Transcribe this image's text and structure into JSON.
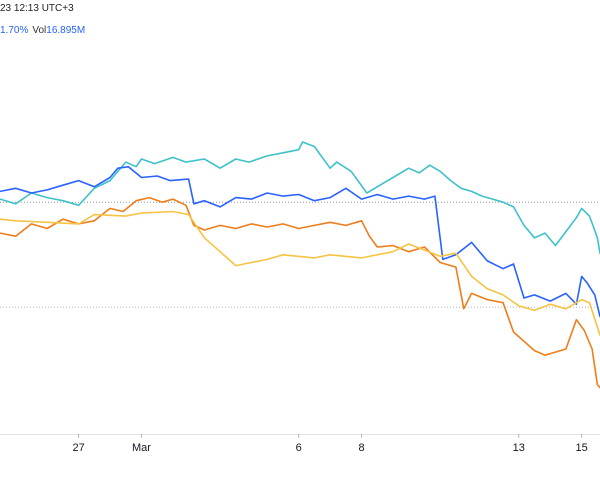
{
  "header": {
    "datetime": "23 12:13 UTC+3",
    "change": "1.70%",
    "volume_label": "Vol",
    "volume_value": "16.895M"
  },
  "chart_data": {
    "type": "line",
    "title": "",
    "xlabel": "",
    "ylabel": "",
    "x_axis": {
      "range": [
        "2023-02-24T12:00",
        "2023-03-15T14:00"
      ],
      "tick_labels": [
        {
          "label": "27",
          "x": "2023-02-27"
        },
        {
          "label": "Mar",
          "x": "2023-03-01"
        },
        {
          "label": "6",
          "x": "2023-03-06"
        },
        {
          "label": "8",
          "x": "2023-03-08"
        },
        {
          "label": "13",
          "x": "2023-03-13"
        },
        {
          "label": "15",
          "x": "2023-03-15"
        }
      ]
    },
    "y_axis": {
      "unit": "% change",
      "range": [
        -15,
        10.5
      ],
      "labels_visible": false
    },
    "reference_lines": [
      {
        "y": 0,
        "style": "dotted",
        "color": "#9598a1"
      },
      {
        "y": -6.8,
        "style": "dotted",
        "color": "#b2b5be"
      }
    ],
    "grid": false,
    "legend": "none",
    "series": [
      {
        "color": "#3fc1c9",
        "points": [
          [
            "2023-02-24T12:00",
            0.2
          ],
          [
            "2023-02-25T00:00",
            -0.1
          ],
          [
            "2023-02-25T12:00",
            0.6
          ],
          [
            "2023-02-26T00:00",
            0.3
          ],
          [
            "2023-02-26T12:00",
            0.1
          ],
          [
            "2023-02-27T00:00",
            -0.2
          ],
          [
            "2023-02-27T12:00",
            0.9
          ],
          [
            "2023-02-28T00:00",
            1.4
          ],
          [
            "2023-02-28T05:00",
            1.9
          ],
          [
            "2023-02-28T12:00",
            2.6
          ],
          [
            "2023-02-28T20:00",
            2.3
          ],
          [
            "2023-03-01T00:00",
            2.8
          ],
          [
            "2023-03-01T10:00",
            2.5
          ],
          [
            "2023-03-02T00:00",
            2.9
          ],
          [
            "2023-03-02T10:00",
            2.6
          ],
          [
            "2023-03-03T00:00",
            2.8
          ],
          [
            "2023-03-03T12:00",
            2.2
          ],
          [
            "2023-03-04T00:00",
            2.8
          ],
          [
            "2023-03-04T10:00",
            2.6
          ],
          [
            "2023-03-05T00:00",
            3.0
          ],
          [
            "2023-03-05T12:00",
            3.2
          ],
          [
            "2023-03-06T00:00",
            3.4
          ],
          [
            "2023-03-06T03:00",
            3.9
          ],
          [
            "2023-03-06T12:00",
            3.6
          ],
          [
            "2023-03-07T00:00",
            2.2
          ],
          [
            "2023-03-07T05:00",
            2.6
          ],
          [
            "2023-03-07T16:00",
            2.0
          ],
          [
            "2023-03-07T22:00",
            1.3
          ],
          [
            "2023-03-08T04:00",
            0.6
          ],
          [
            "2023-03-08T12:00",
            1.0
          ],
          [
            "2023-03-09T00:00",
            1.6
          ],
          [
            "2023-03-09T12:00",
            2.2
          ],
          [
            "2023-03-09T20:00",
            1.9
          ],
          [
            "2023-03-10T04:00",
            2.4
          ],
          [
            "2023-03-10T12:00",
            2.0
          ],
          [
            "2023-03-10T20:00",
            1.4
          ],
          [
            "2023-03-11T04:00",
            0.9
          ],
          [
            "2023-03-11T12:00",
            0.7
          ],
          [
            "2023-03-11T20:00",
            0.4
          ],
          [
            "2023-03-12T04:00",
            0.2
          ],
          [
            "2023-03-12T12:00",
            0.0
          ],
          [
            "2023-03-12T20:00",
            -0.3
          ],
          [
            "2023-03-13T04:00",
            -1.5
          ],
          [
            "2023-03-13T12:00",
            -2.3
          ],
          [
            "2023-03-13T20:00",
            -2.0
          ],
          [
            "2023-03-14T04:00",
            -2.8
          ],
          [
            "2023-03-14T12:00",
            -1.9
          ],
          [
            "2023-03-14T20:00",
            -1.0
          ],
          [
            "2023-03-15T00:00",
            -0.4
          ],
          [
            "2023-03-15T06:00",
            -0.9
          ],
          [
            "2023-03-15T12:00",
            -2.3
          ],
          [
            "2023-03-15T14:00",
            -3.3
          ]
        ]
      },
      {
        "color": "#2962ff",
        "points": [
          [
            "2023-02-24T12:00",
            0.7
          ],
          [
            "2023-02-25T00:00",
            0.9
          ],
          [
            "2023-02-25T12:00",
            0.6
          ],
          [
            "2023-02-26T00:00",
            0.8
          ],
          [
            "2023-02-26T12:00",
            1.1
          ],
          [
            "2023-02-27T00:00",
            1.4
          ],
          [
            "2023-02-27T12:00",
            1.0
          ],
          [
            "2023-02-28T00:00",
            1.6
          ],
          [
            "2023-02-28T06:00",
            2.2
          ],
          [
            "2023-02-28T14:00",
            2.3
          ],
          [
            "2023-03-01T00:00",
            1.6
          ],
          [
            "2023-03-01T12:00",
            1.7
          ],
          [
            "2023-03-01T22:00",
            1.4
          ],
          [
            "2023-03-02T12:00",
            1.5
          ],
          [
            "2023-03-02T16:00",
            -0.1
          ],
          [
            "2023-03-03T00:00",
            0.1
          ],
          [
            "2023-03-03T12:00",
            -0.3
          ],
          [
            "2023-03-04T00:00",
            0.3
          ],
          [
            "2023-03-04T12:00",
            0.2
          ],
          [
            "2023-03-05T00:00",
            0.6
          ],
          [
            "2023-03-05T12:00",
            0.4
          ],
          [
            "2023-03-06T00:00",
            0.5
          ],
          [
            "2023-03-06T12:00",
            0.1
          ],
          [
            "2023-03-07T00:00",
            0.3
          ],
          [
            "2023-03-07T12:00",
            0.9
          ],
          [
            "2023-03-08T00:00",
            0.2
          ],
          [
            "2023-03-08T12:00",
            0.5
          ],
          [
            "2023-03-09T00:00",
            0.2
          ],
          [
            "2023-03-09T12:00",
            0.4
          ],
          [
            "2023-03-10T00:00",
            0.2
          ],
          [
            "2023-03-10T08:00",
            0.4
          ],
          [
            "2023-03-10T14:00",
            -3.7
          ],
          [
            "2023-03-11T00:00",
            -3.4
          ],
          [
            "2023-03-11T12:00",
            -2.6
          ],
          [
            "2023-03-12T00:00",
            -3.8
          ],
          [
            "2023-03-12T12:00",
            -4.3
          ],
          [
            "2023-03-12T20:00",
            -4.0
          ],
          [
            "2023-03-13T04:00",
            -6.2
          ],
          [
            "2023-03-13T12:00",
            -6.0
          ],
          [
            "2023-03-14T00:00",
            -6.4
          ],
          [
            "2023-03-14T12:00",
            -5.9
          ],
          [
            "2023-03-14T20:00",
            -6.6
          ],
          [
            "2023-03-15T00:00",
            -4.8
          ],
          [
            "2023-03-15T04:00",
            -5.2
          ],
          [
            "2023-03-15T10:00",
            -6.0
          ],
          [
            "2023-03-15T14:00",
            -7.4
          ]
        ]
      },
      {
        "color": "#ef7d1a",
        "points": [
          [
            "2023-02-24T12:00",
            -2.0
          ],
          [
            "2023-02-25T00:00",
            -2.2
          ],
          [
            "2023-02-25T12:00",
            -1.4
          ],
          [
            "2023-02-26T00:00",
            -1.7
          ],
          [
            "2023-02-26T12:00",
            -1.1
          ],
          [
            "2023-02-27T00:00",
            -1.4
          ],
          [
            "2023-02-27T12:00",
            -1.2
          ],
          [
            "2023-02-28T00:00",
            -0.4
          ],
          [
            "2023-02-28T10:00",
            -0.6
          ],
          [
            "2023-02-28T20:00",
            0.1
          ],
          [
            "2023-03-01T06:00",
            0.3
          ],
          [
            "2023-03-01T16:00",
            0.0
          ],
          [
            "2023-03-02T00:00",
            0.2
          ],
          [
            "2023-03-02T10:00",
            -0.2
          ],
          [
            "2023-03-02T16:00",
            -1.5
          ],
          [
            "2023-03-03T00:00",
            -1.8
          ],
          [
            "2023-03-03T12:00",
            -1.5
          ],
          [
            "2023-03-04T00:00",
            -1.7
          ],
          [
            "2023-03-04T12:00",
            -1.4
          ],
          [
            "2023-03-05T00:00",
            -1.6
          ],
          [
            "2023-03-05T12:00",
            -1.4
          ],
          [
            "2023-03-06T00:00",
            -1.7
          ],
          [
            "2023-03-06T12:00",
            -1.5
          ],
          [
            "2023-03-07T00:00",
            -1.3
          ],
          [
            "2023-03-07T12:00",
            -1.5
          ],
          [
            "2023-03-08T00:00",
            -1.2
          ],
          [
            "2023-03-08T06:00",
            -2.2
          ],
          [
            "2023-03-08T12:00",
            -2.9
          ],
          [
            "2023-03-09T00:00",
            -2.8
          ],
          [
            "2023-03-09T12:00",
            -3.2
          ],
          [
            "2023-03-10T00:00",
            -2.9
          ],
          [
            "2023-03-10T12:00",
            -3.9
          ],
          [
            "2023-03-11T00:00",
            -4.2
          ],
          [
            "2023-03-11T06:00",
            -6.9
          ],
          [
            "2023-03-11T12:00",
            -5.9
          ],
          [
            "2023-03-12T00:00",
            -6.3
          ],
          [
            "2023-03-12T12:00",
            -6.5
          ],
          [
            "2023-03-12T20:00",
            -8.4
          ],
          [
            "2023-03-13T04:00",
            -9.0
          ],
          [
            "2023-03-13T12:00",
            -9.6
          ],
          [
            "2023-03-13T20:00",
            -9.9
          ],
          [
            "2023-03-14T04:00",
            -9.7
          ],
          [
            "2023-03-14T12:00",
            -9.5
          ],
          [
            "2023-03-14T20:00",
            -7.6
          ],
          [
            "2023-03-15T02:00",
            -8.3
          ],
          [
            "2023-03-15T08:00",
            -9.5
          ],
          [
            "2023-03-15T12:00",
            -11.8
          ],
          [
            "2023-03-15T14:00",
            -12.0
          ]
        ]
      },
      {
        "color": "#f6c444",
        "points": [
          [
            "2023-02-24T12:00",
            -1.1
          ],
          [
            "2023-02-25T00:00",
            -1.2
          ],
          [
            "2023-02-26T00:00",
            -1.3
          ],
          [
            "2023-02-27T00:00",
            -1.4
          ],
          [
            "2023-02-27T12:00",
            -0.8
          ],
          [
            "2023-02-28T12:00",
            -0.9
          ],
          [
            "2023-03-01T00:00",
            -0.7
          ],
          [
            "2023-03-02T00:00",
            -0.6
          ],
          [
            "2023-03-02T12:00",
            -0.8
          ],
          [
            "2023-03-03T00:00",
            -2.3
          ],
          [
            "2023-03-04T00:00",
            -4.1
          ],
          [
            "2023-03-04T12:00",
            -3.9
          ],
          [
            "2023-03-05T00:00",
            -3.7
          ],
          [
            "2023-03-05T12:00",
            -3.4
          ],
          [
            "2023-03-06T12:00",
            -3.6
          ],
          [
            "2023-03-07T00:00",
            -3.4
          ],
          [
            "2023-03-08T00:00",
            -3.6
          ],
          [
            "2023-03-09T00:00",
            -3.2
          ],
          [
            "2023-03-09T12:00",
            -2.7
          ],
          [
            "2023-03-10T00:00",
            -3.1
          ],
          [
            "2023-03-10T12:00",
            -3.5
          ],
          [
            "2023-03-11T00:00",
            -3.3
          ],
          [
            "2023-03-11T12:00",
            -4.8
          ],
          [
            "2023-03-12T00:00",
            -5.6
          ],
          [
            "2023-03-12T12:00",
            -6.0
          ],
          [
            "2023-03-13T00:00",
            -6.7
          ],
          [
            "2023-03-13T12:00",
            -7.0
          ],
          [
            "2023-03-14T00:00",
            -6.6
          ],
          [
            "2023-03-14T12:00",
            -6.9
          ],
          [
            "2023-03-15T00:00",
            -6.3
          ],
          [
            "2023-03-15T06:00",
            -6.5
          ],
          [
            "2023-03-15T14:00",
            -8.6
          ]
        ]
      }
    ]
  }
}
